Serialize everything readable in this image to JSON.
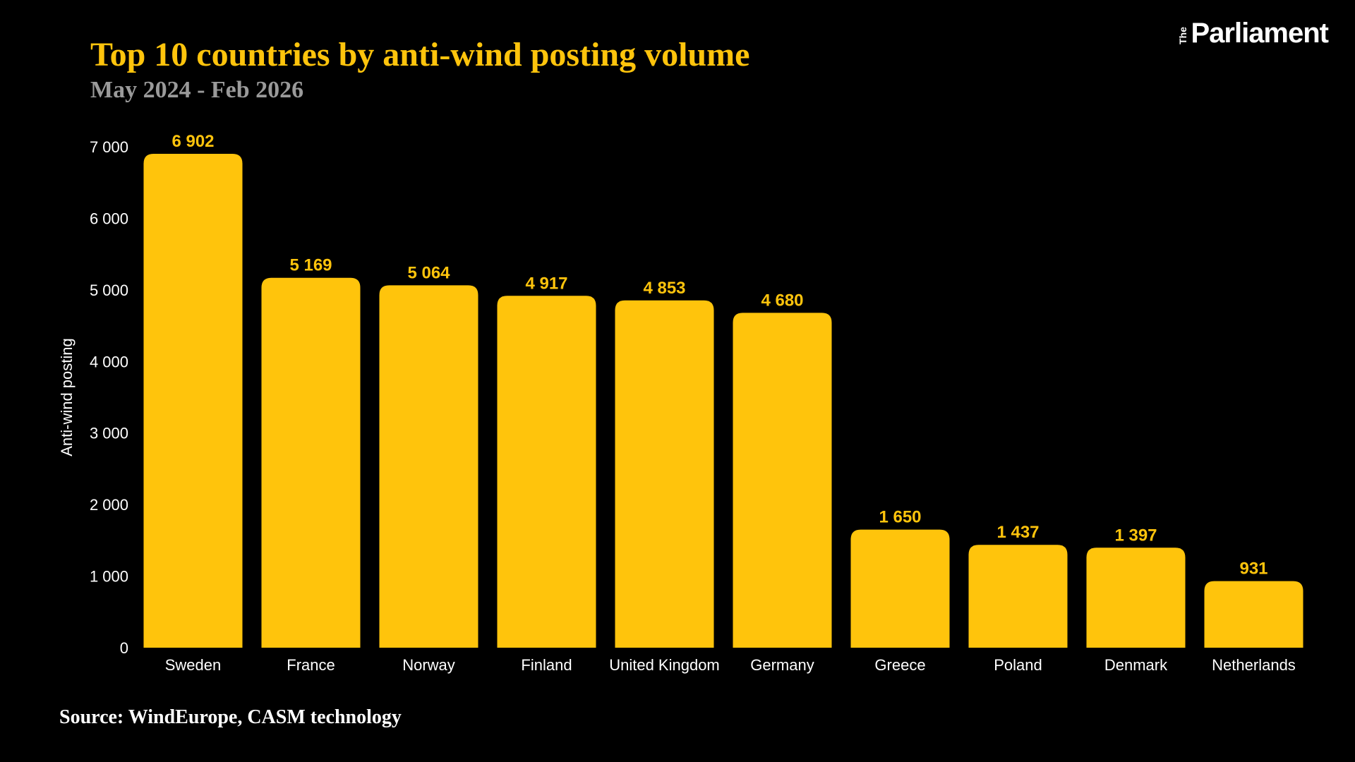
{
  "header": {
    "title": "Top 10 countries by anti-wind posting volume",
    "subtitle": "May 2024 - Feb 2026",
    "logo_the": "The",
    "logo_name": "Parliament"
  },
  "footer": {
    "source": "Source: WindEurope, CASM technology"
  },
  "colors": {
    "background": "#000000",
    "bar": "#FFC40C",
    "title": "#FFC40C",
    "subtitle": "#9A9A9A",
    "axis_text": "#FFFFFF",
    "data_label": "#FFC40C",
    "logo": "#FFFFFF",
    "source": "#FFFFFF"
  },
  "chart_data": {
    "type": "bar",
    "title": "Top 10 countries by anti-wind posting volume",
    "subtitle": "May 2024 - Feb 2026",
    "xlabel": "",
    "ylabel": "Anti-wind posting",
    "categories": [
      "Sweden",
      "France",
      "Norway",
      "Finland",
      "United Kingdom",
      "Germany",
      "Greece",
      "Poland",
      "Denmark",
      "Netherlands"
    ],
    "values": [
      6902,
      5169,
      5064,
      4917,
      4853,
      4680,
      1650,
      1437,
      1397,
      931
    ],
    "value_labels": [
      "6 902",
      "5 169",
      "5 064",
      "4 917",
      "4 853",
      "4 680",
      "1 650",
      "1 437",
      "1 397",
      "931"
    ],
    "ylim": [
      0,
      7000
    ],
    "yticks": [
      0,
      1000,
      2000,
      3000,
      4000,
      5000,
      6000,
      7000
    ],
    "ytick_labels": [
      "0",
      "1 000",
      "2 000",
      "3 000",
      "4 000",
      "5 000",
      "6 000",
      "7 000"
    ],
    "grid": false,
    "legend": "none"
  }
}
